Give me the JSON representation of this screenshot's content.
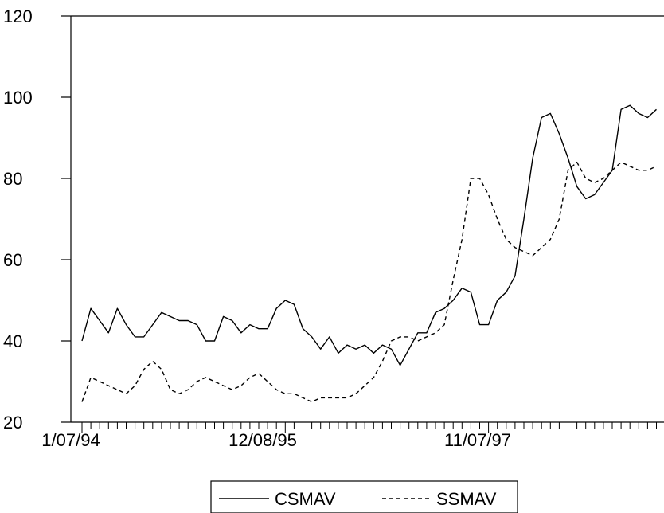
{
  "chart_data": {
    "type": "line",
    "title": "",
    "xlabel": "",
    "ylabel": "",
    "ylim": [
      20,
      120
    ],
    "y_ticks": [
      "20",
      "40",
      "60",
      "80",
      "100",
      "120"
    ],
    "x_tick_labels": [
      "1/07/94",
      "12/08/95",
      "11/07/97"
    ],
    "grid": false,
    "legend_position": "bottom-center",
    "x": [
      "1994-01",
      "1994-02",
      "1994-03",
      "1994-04",
      "1994-05",
      "1994-06",
      "1994-07",
      "1994-08",
      "1994-09",
      "1994-10",
      "1994-11",
      "1994-12",
      "1995-01",
      "1995-02",
      "1995-03",
      "1995-04",
      "1995-05",
      "1995-06",
      "1995-07",
      "1995-08",
      "1995-09",
      "1995-10",
      "1995-11",
      "1995-12",
      "1996-01",
      "1996-02",
      "1996-03",
      "1996-04",
      "1996-05",
      "1996-06",
      "1996-07",
      "1996-08",
      "1996-09",
      "1996-10",
      "1996-11",
      "1996-12",
      "1997-01",
      "1997-02",
      "1997-03",
      "1997-04",
      "1997-05",
      "1997-06",
      "1997-07",
      "1997-08",
      "1997-09",
      "1997-10",
      "1997-11",
      "1997-12",
      "1998-01",
      "1998-02",
      "1998-03",
      "1998-04",
      "1998-05",
      "1998-06",
      "1998-07",
      "1998-08",
      "1998-09",
      "1998-10",
      "1998-11",
      "1998-12",
      "1999-01",
      "1999-02",
      "1999-03",
      "1999-04",
      "1999-05",
      "1999-06"
    ],
    "series": [
      {
        "name": "CSMAV",
        "style": "solid",
        "color": "#000000",
        "values": [
          40,
          48,
          45,
          42,
          48,
          44,
          41,
          41,
          44,
          47,
          46,
          45,
          45,
          44,
          40,
          40,
          46,
          45,
          42,
          44,
          43,
          43,
          48,
          50,
          49,
          43,
          41,
          38,
          41,
          37,
          39,
          38,
          39,
          37,
          39,
          38,
          34,
          38,
          42,
          42,
          47,
          48,
          50,
          53,
          52,
          44,
          44,
          50,
          52,
          56,
          70,
          85,
          95,
          96,
          91,
          85,
          78,
          75,
          76,
          79,
          82,
          97,
          98,
          96,
          95,
          97
        ]
      },
      {
        "name": "SSMAV",
        "style": "dashed",
        "color": "#000000",
        "values": [
          25,
          31,
          30,
          29,
          28,
          27,
          29,
          33,
          35,
          33,
          28,
          27,
          28,
          30,
          31,
          30,
          29,
          28,
          29,
          31,
          32,
          30,
          28,
          27,
          27,
          26,
          25,
          26,
          26,
          26,
          26,
          27,
          29,
          31,
          35,
          40,
          41,
          41,
          40,
          41,
          42,
          44,
          55,
          65,
          80,
          80,
          76,
          70,
          65,
          63,
          62,
          61,
          63,
          65,
          70,
          82,
          84,
          80,
          79,
          80,
          82,
          84,
          83,
          82,
          82,
          83
        ]
      }
    ]
  }
}
